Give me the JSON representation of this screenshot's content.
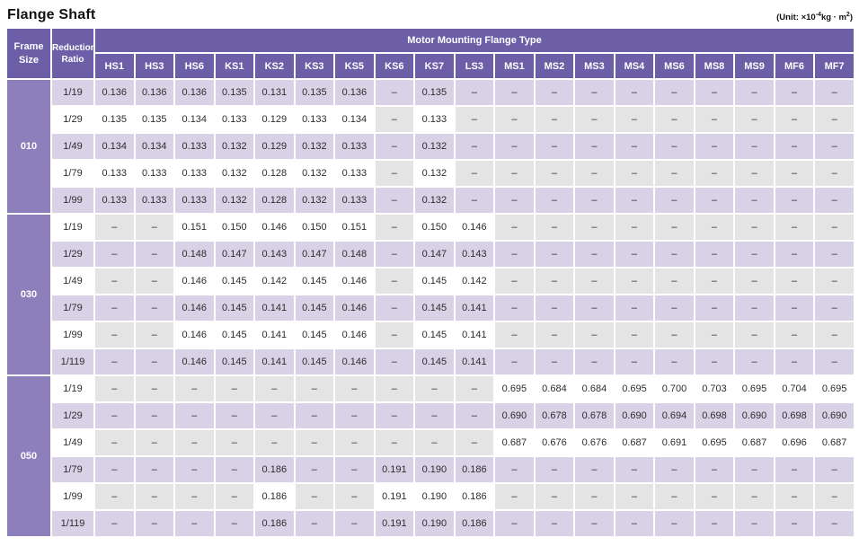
{
  "title": "Flange Shaft",
  "unit": {
    "prefix": "(Unit: ×10",
    "sup1": "-4",
    "mid": "kg · m",
    "sup2": "2",
    "suffix": ")"
  },
  "colors": {
    "header_purple": "#6c5ea7",
    "frame_purple": "#8d7ebc",
    "row_lavender": "#d9d1e6",
    "row_white": "#ffffff",
    "na_gray": "#e4e4e5",
    "text_dark": "#2d2d2d"
  },
  "table": {
    "frame_size_header": "Frame\nSize",
    "reduction_ratio_header": "Reduction\nRatio",
    "flange_type_header": "Motor Mounting Flange Type",
    "na_symbol": "–",
    "columns": [
      "HS1",
      "HS3",
      "HS6",
      "KS1",
      "KS2",
      "KS3",
      "KS5",
      "KS6",
      "KS7",
      "LS3",
      "MS1",
      "MS2",
      "MS3",
      "MS4",
      "MS6",
      "MS8",
      "MS9",
      "MF6",
      "MF7"
    ],
    "groups": [
      {
        "frame": "010",
        "rows": [
          {
            "ratio": "1/19",
            "values": [
              "0.136",
              "0.136",
              "0.136",
              "0.135",
              "0.131",
              "0.135",
              "0.136",
              "–",
              "0.135",
              "–",
              "–",
              "–",
              "–",
              "–",
              "–",
              "–",
              "–",
              "–",
              "–"
            ]
          },
          {
            "ratio": "1/29",
            "values": [
              "0.135",
              "0.135",
              "0.134",
              "0.133",
              "0.129",
              "0.133",
              "0.134",
              "–",
              "0.133",
              "–",
              "–",
              "–",
              "–",
              "–",
              "–",
              "–",
              "–",
              "–",
              "–"
            ]
          },
          {
            "ratio": "1/49",
            "values": [
              "0.134",
              "0.134",
              "0.133",
              "0.132",
              "0.129",
              "0.132",
              "0.133",
              "–",
              "0.132",
              "–",
              "–",
              "–",
              "–",
              "–",
              "–",
              "–",
              "–",
              "–",
              "–"
            ]
          },
          {
            "ratio": "1/79",
            "values": [
              "0.133",
              "0.133",
              "0.133",
              "0.132",
              "0.128",
              "0.132",
              "0.133",
              "–",
              "0.132",
              "–",
              "–",
              "–",
              "–",
              "–",
              "–",
              "–",
              "–",
              "–",
              "–"
            ]
          },
          {
            "ratio": "1/99",
            "values": [
              "0.133",
              "0.133",
              "0.133",
              "0.132",
              "0.128",
              "0.132",
              "0.133",
              "–",
              "0.132",
              "–",
              "–",
              "–",
              "–",
              "–",
              "–",
              "–",
              "–",
              "–",
              "–"
            ]
          }
        ]
      },
      {
        "frame": "030",
        "rows": [
          {
            "ratio": "1/19",
            "values": [
              "–",
              "–",
              "0.151",
              "0.150",
              "0.146",
              "0.150",
              "0.151",
              "–",
              "0.150",
              "0.146",
              "–",
              "–",
              "–",
              "–",
              "–",
              "–",
              "–",
              "–",
              "–"
            ]
          },
          {
            "ratio": "1/29",
            "values": [
              "–",
              "–",
              "0.148",
              "0.147",
              "0.143",
              "0.147",
              "0.148",
              "–",
              "0.147",
              "0.143",
              "–",
              "–",
              "–",
              "–",
              "–",
              "–",
              "–",
              "–",
              "–"
            ]
          },
          {
            "ratio": "1/49",
            "values": [
              "–",
              "–",
              "0.146",
              "0.145",
              "0.142",
              "0.145",
              "0.146",
              "–",
              "0.145",
              "0.142",
              "–",
              "–",
              "–",
              "–",
              "–",
              "–",
              "–",
              "–",
              "–"
            ]
          },
          {
            "ratio": "1/79",
            "values": [
              "–",
              "–",
              "0.146",
              "0.145",
              "0.141",
              "0.145",
              "0.146",
              "–",
              "0.145",
              "0.141",
              "–",
              "–",
              "–",
              "–",
              "–",
              "–",
              "–",
              "–",
              "–"
            ]
          },
          {
            "ratio": "1/99",
            "values": [
              "–",
              "–",
              "0.146",
              "0.145",
              "0.141",
              "0.145",
              "0.146",
              "–",
              "0.145",
              "0.141",
              "–",
              "–",
              "–",
              "–",
              "–",
              "–",
              "–",
              "–",
              "–"
            ]
          },
          {
            "ratio": "1/119",
            "values": [
              "–",
              "–",
              "0.146",
              "0.145",
              "0.141",
              "0.145",
              "0.146",
              "–",
              "0.145",
              "0.141",
              "–",
              "–",
              "–",
              "–",
              "–",
              "–",
              "–",
              "–",
              "–"
            ]
          }
        ]
      },
      {
        "frame": "050",
        "rows": [
          {
            "ratio": "1/19",
            "values": [
              "–",
              "–",
              "–",
              "–",
              "–",
              "–",
              "–",
              "–",
              "–",
              "–",
              "0.695",
              "0.684",
              "0.684",
              "0.695",
              "0.700",
              "0.703",
              "0.695",
              "0.704",
              "0.695"
            ]
          },
          {
            "ratio": "1/29",
            "values": [
              "–",
              "–",
              "–",
              "–",
              "–",
              "–",
              "–",
              "–",
              "–",
              "–",
              "0.690",
              "0.678",
              "0.678",
              "0.690",
              "0.694",
              "0.698",
              "0.690",
              "0.698",
              "0.690"
            ]
          },
          {
            "ratio": "1/49",
            "values": [
              "–",
              "–",
              "–",
              "–",
              "–",
              "–",
              "–",
              "–",
              "–",
              "–",
              "0.687",
              "0.676",
              "0.676",
              "0.687",
              "0.691",
              "0.695",
              "0.687",
              "0.696",
              "0.687"
            ]
          },
          {
            "ratio": "1/79",
            "values": [
              "–",
              "–",
              "–",
              "–",
              "0.186",
              "–",
              "–",
              "0.191",
              "0.190",
              "0.186",
              "–",
              "–",
              "–",
              "–",
              "–",
              "–",
              "–",
              "–",
              "–"
            ]
          },
          {
            "ratio": "1/99",
            "values": [
              "–",
              "–",
              "–",
              "–",
              "0.186",
              "–",
              "–",
              "0.191",
              "0.190",
              "0.186",
              "–",
              "–",
              "–",
              "–",
              "–",
              "–",
              "–",
              "–",
              "–"
            ]
          },
          {
            "ratio": "1/119",
            "values": [
              "–",
              "–",
              "–",
              "–",
              "0.186",
              "–",
              "–",
              "0.191",
              "0.190",
              "0.186",
              "–",
              "–",
              "–",
              "–",
              "–",
              "–",
              "–",
              "–",
              "–"
            ]
          }
        ]
      }
    ]
  }
}
